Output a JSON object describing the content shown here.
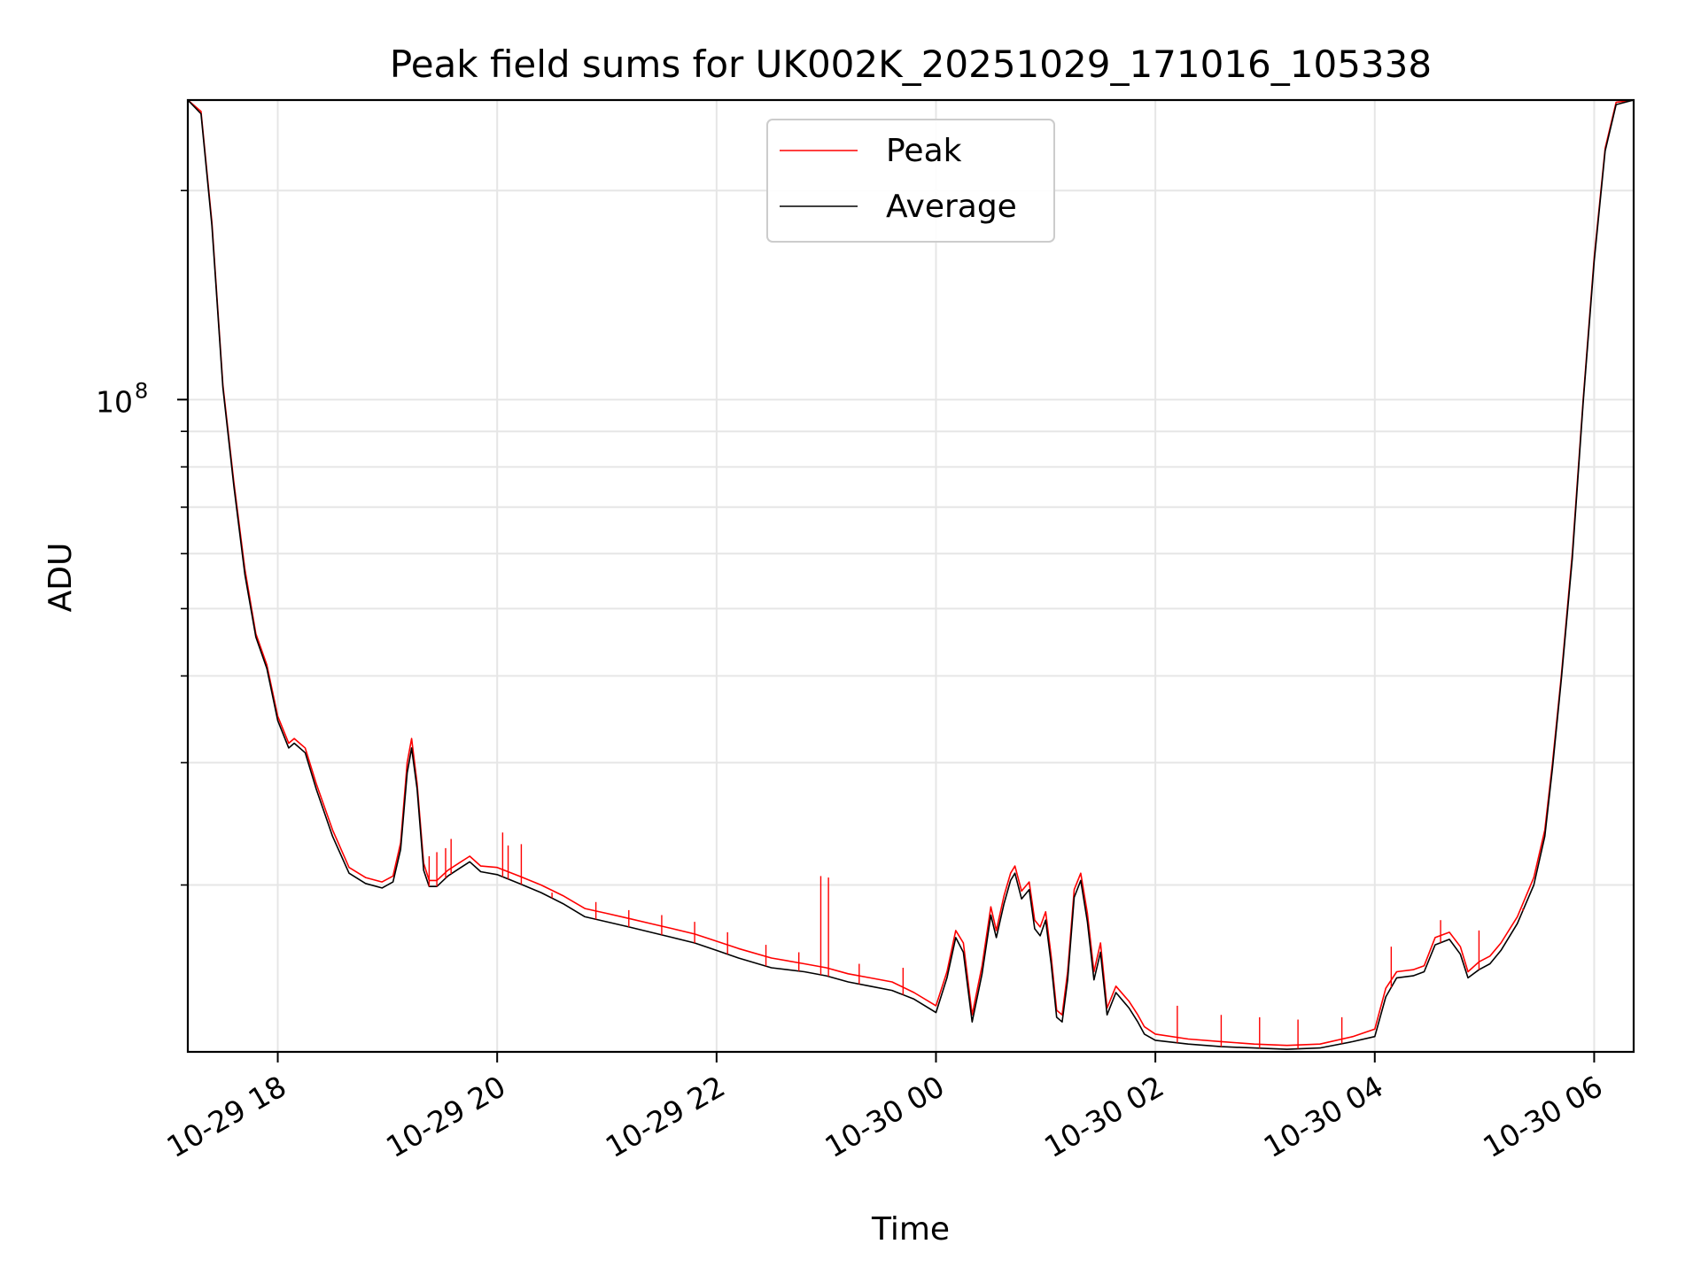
{
  "chart_data": {
    "type": "line",
    "title": "Peak field sums for UK002K_20251029_171016_105338",
    "xlabel": "Time",
    "ylabel": "ADU",
    "yscale": "log",
    "ylim": [
      11500000,
      270000000
    ],
    "xlim_hours": [
      17.18,
      30.36
    ],
    "grid": true,
    "legend_position": "top-center",
    "x_ticks": [
      {
        "hour": 18,
        "label": "10-29 18"
      },
      {
        "hour": 20,
        "label": "10-29 20"
      },
      {
        "hour": 22,
        "label": "10-29 22"
      },
      {
        "hour": 24,
        "label": "10-30 00"
      },
      {
        "hour": 26,
        "label": "10-30 02"
      },
      {
        "hour": 28,
        "label": "10-30 04"
      },
      {
        "hour": 30,
        "label": "10-30 06"
      }
    ],
    "y_major_ticks": [
      {
        "value": 100000000,
        "base": "10",
        "exp": "8"
      }
    ],
    "y_minor_ticks": [
      20000000,
      30000000,
      40000000,
      50000000,
      60000000,
      70000000,
      80000000,
      90000000,
      200000000
    ],
    "series": [
      {
        "name": "Peak",
        "color": "#ff0000",
        "points": [
          [
            17.18,
            270000000
          ],
          [
            17.3,
            260000000
          ],
          [
            17.4,
            180000000
          ],
          [
            17.5,
            105000000
          ],
          [
            17.6,
            76000000
          ],
          [
            17.7,
            57000000
          ],
          [
            17.8,
            46000000
          ],
          [
            17.9,
            41500000
          ],
          [
            18.0,
            35000000
          ],
          [
            18.1,
            32000000
          ],
          [
            18.15,
            32500000
          ],
          [
            18.25,
            31500000
          ],
          [
            18.35,
            28000000
          ],
          [
            18.5,
            24000000
          ],
          [
            18.65,
            21200000
          ],
          [
            18.8,
            20500000
          ],
          [
            18.95,
            20200000
          ],
          [
            19.05,
            20600000
          ],
          [
            19.12,
            23000000
          ],
          [
            19.18,
            30000000
          ],
          [
            19.22,
            32500000
          ],
          [
            19.27,
            28000000
          ],
          [
            19.33,
            21500000
          ],
          [
            19.38,
            20300000
          ],
          [
            19.45,
            20300000
          ],
          [
            19.55,
            21000000
          ],
          [
            19.65,
            21500000
          ],
          [
            19.75,
            22000000
          ],
          [
            19.85,
            21300000
          ],
          [
            20.0,
            21200000
          ],
          [
            20.2,
            20600000
          ],
          [
            20.4,
            20000000
          ],
          [
            20.6,
            19300000
          ],
          [
            20.8,
            18500000
          ],
          [
            21.0,
            18200000
          ],
          [
            21.2,
            17900000
          ],
          [
            21.4,
            17600000
          ],
          [
            21.6,
            17300000
          ],
          [
            21.8,
            17000000
          ],
          [
            22.0,
            16600000
          ],
          [
            22.2,
            16200000
          ],
          [
            22.5,
            15700000
          ],
          [
            22.8,
            15400000
          ],
          [
            23.0,
            15200000
          ],
          [
            23.2,
            14900000
          ],
          [
            23.4,
            14700000
          ],
          [
            23.6,
            14500000
          ],
          [
            23.8,
            14000000
          ],
          [
            24.0,
            13400000
          ],
          [
            24.1,
            15000000
          ],
          [
            24.18,
            17200000
          ],
          [
            24.25,
            16500000
          ],
          [
            24.33,
            13000000
          ],
          [
            24.42,
            15300000
          ],
          [
            24.5,
            18600000
          ],
          [
            24.55,
            17200000
          ],
          [
            24.62,
            19300000
          ],
          [
            24.68,
            20800000
          ],
          [
            24.72,
            21300000
          ],
          [
            24.78,
            19600000
          ],
          [
            24.85,
            20200000
          ],
          [
            24.9,
            17800000
          ],
          [
            24.95,
            17400000
          ],
          [
            25.0,
            18300000
          ],
          [
            25.05,
            15800000
          ],
          [
            25.1,
            13200000
          ],
          [
            25.15,
            13000000
          ],
          [
            25.2,
            15000000
          ],
          [
            25.26,
            19700000
          ],
          [
            25.32,
            20800000
          ],
          [
            25.38,
            18200000
          ],
          [
            25.44,
            15000000
          ],
          [
            25.5,
            16500000
          ],
          [
            25.56,
            13300000
          ],
          [
            25.64,
            14300000
          ],
          [
            25.76,
            13600000
          ],
          [
            25.84,
            13000000
          ],
          [
            25.9,
            12500000
          ],
          [
            26.0,
            12200000
          ],
          [
            26.3,
            12000000
          ],
          [
            26.6,
            11900000
          ],
          [
            26.9,
            11800000
          ],
          [
            27.2,
            11750000
          ],
          [
            27.5,
            11800000
          ],
          [
            27.8,
            12100000
          ],
          [
            28.0,
            12400000
          ],
          [
            28.1,
            14200000
          ],
          [
            28.2,
            15000000
          ],
          [
            28.35,
            15100000
          ],
          [
            28.45,
            15300000
          ],
          [
            28.55,
            16800000
          ],
          [
            28.68,
            17100000
          ],
          [
            28.78,
            16300000
          ],
          [
            28.85,
            15000000
          ],
          [
            28.95,
            15500000
          ],
          [
            29.05,
            15800000
          ],
          [
            29.15,
            16500000
          ],
          [
            29.3,
            18000000
          ],
          [
            29.45,
            20500000
          ],
          [
            29.55,
            24000000
          ],
          [
            29.62,
            30000000
          ],
          [
            29.7,
            40000000
          ],
          [
            29.8,
            60000000
          ],
          [
            29.9,
            100000000
          ],
          [
            30.0,
            160000000
          ],
          [
            30.1,
            230000000
          ],
          [
            30.2,
            268000000
          ],
          [
            30.36,
            270000000
          ]
        ]
      },
      {
        "name": "Average",
        "color": "#000000",
        "points": [
          [
            17.18,
            270000000
          ],
          [
            17.3,
            258000000
          ],
          [
            17.4,
            178000000
          ],
          [
            17.5,
            104000000
          ],
          [
            17.6,
            75000000
          ],
          [
            17.7,
            56000000
          ],
          [
            17.8,
            45500000
          ],
          [
            17.9,
            41000000
          ],
          [
            18.0,
            34500000
          ],
          [
            18.1,
            31500000
          ],
          [
            18.15,
            32000000
          ],
          [
            18.25,
            31000000
          ],
          [
            18.35,
            27500000
          ],
          [
            18.5,
            23500000
          ],
          [
            18.65,
            20800000
          ],
          [
            18.8,
            20100000
          ],
          [
            18.95,
            19800000
          ],
          [
            19.05,
            20200000
          ],
          [
            19.12,
            22500000
          ],
          [
            19.18,
            29000000
          ],
          [
            19.22,
            31500000
          ],
          [
            19.27,
            27500000
          ],
          [
            19.33,
            21000000
          ],
          [
            19.38,
            19900000
          ],
          [
            19.45,
            19900000
          ],
          [
            19.55,
            20600000
          ],
          [
            19.65,
            21100000
          ],
          [
            19.75,
            21600000
          ],
          [
            19.85,
            20900000
          ],
          [
            20.0,
            20700000
          ],
          [
            20.2,
            20100000
          ],
          [
            20.4,
            19500000
          ],
          [
            20.6,
            18800000
          ],
          [
            20.8,
            18000000
          ],
          [
            21.0,
            17700000
          ],
          [
            21.2,
            17400000
          ],
          [
            21.4,
            17100000
          ],
          [
            21.6,
            16800000
          ],
          [
            21.8,
            16500000
          ],
          [
            22.0,
            16100000
          ],
          [
            22.2,
            15700000
          ],
          [
            22.5,
            15200000
          ],
          [
            22.8,
            15000000
          ],
          [
            23.0,
            14800000
          ],
          [
            23.2,
            14500000
          ],
          [
            23.4,
            14300000
          ],
          [
            23.6,
            14100000
          ],
          [
            23.8,
            13700000
          ],
          [
            24.0,
            13100000
          ],
          [
            24.1,
            14700000
          ],
          [
            24.18,
            16800000
          ],
          [
            24.25,
            16000000
          ],
          [
            24.33,
            12700000
          ],
          [
            24.42,
            14900000
          ],
          [
            24.5,
            18100000
          ],
          [
            24.55,
            16800000
          ],
          [
            24.62,
            18800000
          ],
          [
            24.68,
            20300000
          ],
          [
            24.72,
            20800000
          ],
          [
            24.78,
            19100000
          ],
          [
            24.85,
            19700000
          ],
          [
            24.9,
            17300000
          ],
          [
            24.95,
            16900000
          ],
          [
            25.0,
            17800000
          ],
          [
            25.05,
            15400000
          ],
          [
            25.1,
            12900000
          ],
          [
            25.15,
            12700000
          ],
          [
            25.2,
            14600000
          ],
          [
            25.26,
            19200000
          ],
          [
            25.32,
            20300000
          ],
          [
            25.38,
            17700000
          ],
          [
            25.44,
            14600000
          ],
          [
            25.5,
            16000000
          ],
          [
            25.56,
            13000000
          ],
          [
            25.64,
            14000000
          ],
          [
            25.76,
            13300000
          ],
          [
            25.84,
            12700000
          ],
          [
            25.9,
            12200000
          ],
          [
            26.0,
            11950000
          ],
          [
            26.3,
            11800000
          ],
          [
            26.6,
            11700000
          ],
          [
            26.9,
            11650000
          ],
          [
            27.2,
            11600000
          ],
          [
            27.5,
            11650000
          ],
          [
            27.8,
            11900000
          ],
          [
            28.0,
            12100000
          ],
          [
            28.1,
            13800000
          ],
          [
            28.2,
            14700000
          ],
          [
            28.35,
            14800000
          ],
          [
            28.45,
            15000000
          ],
          [
            28.55,
            16400000
          ],
          [
            28.68,
            16700000
          ],
          [
            28.78,
            15900000
          ],
          [
            28.85,
            14700000
          ],
          [
            28.95,
            15100000
          ],
          [
            29.05,
            15400000
          ],
          [
            29.15,
            16100000
          ],
          [
            29.3,
            17600000
          ],
          [
            29.45,
            20000000
          ],
          [
            29.55,
            23500000
          ],
          [
            29.62,
            29500000
          ],
          [
            29.7,
            39500000
          ],
          [
            29.8,
            59000000
          ],
          [
            29.9,
            99000000
          ],
          [
            30.0,
            158000000
          ],
          [
            30.1,
            228000000
          ],
          [
            30.2,
            266000000
          ],
          [
            30.36,
            270000000
          ]
        ]
      }
    ],
    "peak_spikes": [
      [
        19.38,
        22000000
      ],
      [
        19.45,
        22300000
      ],
      [
        19.53,
        22600000
      ],
      [
        19.58,
        23300000
      ],
      [
        20.05,
        23800000
      ],
      [
        20.1,
        22800000
      ],
      [
        20.22,
        22900000
      ],
      [
        20.5,
        19500000
      ],
      [
        20.9,
        18900000
      ],
      [
        21.2,
        18400000
      ],
      [
        21.5,
        18100000
      ],
      [
        21.8,
        17700000
      ],
      [
        22.1,
        17100000
      ],
      [
        22.45,
        16400000
      ],
      [
        22.75,
        16000000
      ],
      [
        22.95,
        20600000
      ],
      [
        23.02,
        20500000
      ],
      [
        23.3,
        15400000
      ],
      [
        23.7,
        15200000
      ],
      [
        26.2,
        13400000
      ],
      [
        26.6,
        13000000
      ],
      [
        26.95,
        12900000
      ],
      [
        27.3,
        12800000
      ],
      [
        27.7,
        12900000
      ],
      [
        28.15,
        16300000
      ],
      [
        28.6,
        17800000
      ],
      [
        28.95,
        17200000
      ],
      [
        29.35,
        18500000
      ]
    ]
  },
  "legend": {
    "items": [
      {
        "label": "Peak",
        "color": "#ff0000"
      },
      {
        "label": "Average",
        "color": "#000000"
      }
    ]
  }
}
